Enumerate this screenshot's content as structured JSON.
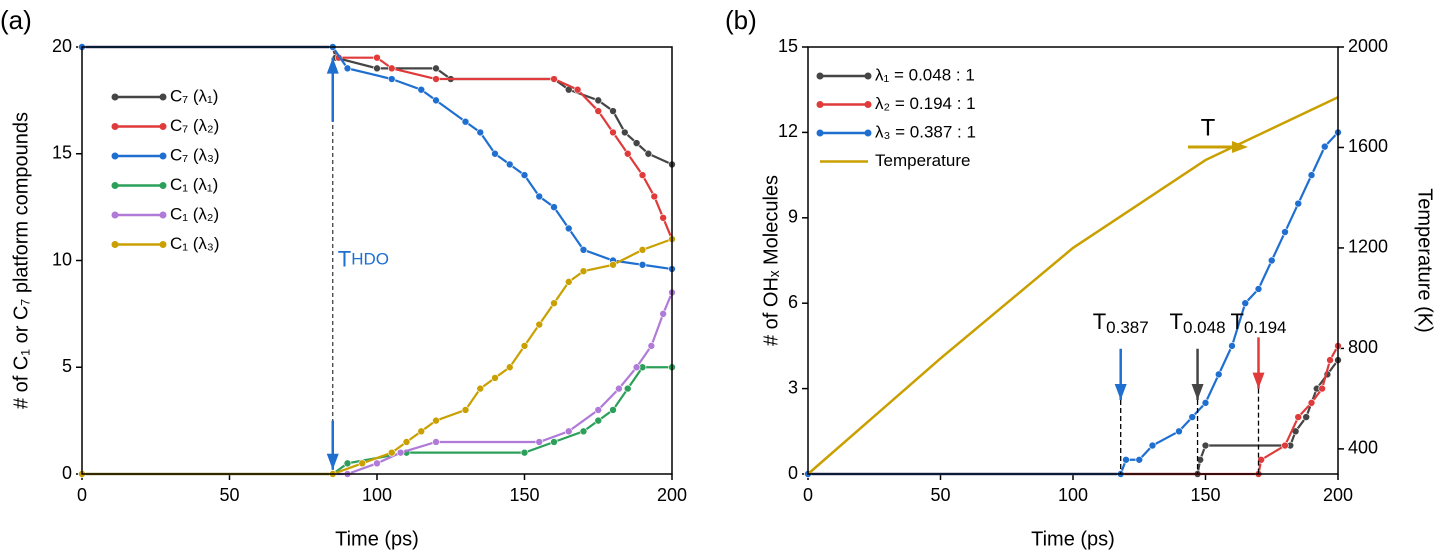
{
  "chart_data": [
    {
      "type": "line",
      "panel_label": "(a)",
      "x_label": "Time (ps)",
      "y_label": "# of C₁ or C₇ platform compounds",
      "xlim": [
        0,
        200
      ],
      "xticks": [
        0,
        50,
        100,
        150,
        200
      ],
      "ylim": [
        0,
        20
      ],
      "yticks": [
        0,
        5,
        10,
        15,
        20
      ],
      "legend": "upper left",
      "markers": true,
      "series": [
        {
          "name": "C₇ (λ₁)",
          "color": "#454545",
          "x": [
            0,
            85,
            86,
            100,
            120,
            125,
            160,
            165,
            175,
            180,
            184,
            188,
            192,
            200
          ],
          "values": [
            20,
            20,
            19.5,
            19,
            19,
            18.5,
            18.5,
            18,
            17.5,
            17,
            16,
            15.5,
            15,
            14.5
          ]
        },
        {
          "name": "C₇ (λ₂)",
          "color": "#e03a3a",
          "x": [
            0,
            85,
            87,
            100,
            105,
            120,
            160,
            168,
            175,
            180,
            185,
            190,
            194,
            197,
            200
          ],
          "values": [
            20,
            20,
            19.5,
            19.5,
            19,
            18.5,
            18.5,
            18,
            17,
            16,
            15,
            14,
            13,
            12,
            11
          ]
        },
        {
          "name": "C₇ (λ₃)",
          "color": "#1f6fd1",
          "x": [
            0,
            85,
            90,
            105,
            115,
            120,
            130,
            135,
            140,
            145,
            150,
            155,
            160,
            165,
            170,
            180,
            190,
            200
          ],
          "values": [
            20,
            20,
            19,
            18.5,
            18,
            17.5,
            16.5,
            16,
            15,
            14.5,
            14,
            13,
            12.5,
            11.5,
            10.5,
            10,
            9.8,
            9.6
          ]
        },
        {
          "name": "C₁ (λ₁)",
          "color": "#2ca05a",
          "x": [
            0,
            85,
            90,
            110,
            150,
            160,
            170,
            175,
            180,
            185,
            190,
            200
          ],
          "values": [
            0,
            0,
            0.5,
            1,
            1,
            1.5,
            2,
            2.5,
            3,
            4,
            5,
            5
          ]
        },
        {
          "name": "C₁ (λ₂)",
          "color": "#b07ad8",
          "x": [
            0,
            90,
            100,
            108,
            120,
            155,
            165,
            175,
            182,
            188,
            193,
            197,
            200
          ],
          "values": [
            0,
            0,
            0.5,
            1,
            1.5,
            1.5,
            2,
            3,
            4,
            5,
            6,
            7.5,
            8.5
          ]
        },
        {
          "name": "C₁ (λ₃)",
          "color": "#c9a000",
          "x": [
            0,
            85,
            95,
            105,
            110,
            115,
            120,
            130,
            135,
            140,
            145,
            150,
            155,
            160,
            165,
            170,
            180,
            190,
            200
          ],
          "values": [
            0,
            0,
            0.5,
            1,
            1.5,
            2,
            2.5,
            3,
            4,
            4.5,
            5,
            6,
            7,
            8,
            9,
            9.5,
            9.8,
            10.5,
            11
          ]
        }
      ],
      "annotations": [
        {
          "text": "T",
          "sub": "HDO",
          "x": 85,
          "color": "#1f6fd1"
        }
      ]
    },
    {
      "type": "line",
      "panel_label": "(b)",
      "x_label": "Time (ps)",
      "y_label": "# of OHₓ Molecules",
      "y2_label": "Temperature (K)",
      "xlim": [
        0,
        200
      ],
      "xticks": [
        0,
        50,
        100,
        150,
        200
      ],
      "ylim": [
        0,
        15
      ],
      "yticks": [
        0,
        3,
        6,
        9,
        12,
        15
      ],
      "y2lim": [
        300,
        2000
      ],
      "y2ticks": [
        400,
        800,
        1200,
        1600,
        2000
      ],
      "legend": "upper left",
      "markers": true,
      "series": [
        {
          "name": "λ₁ = 0.048 : 1",
          "color": "#454545",
          "x": [
            0,
            147,
            148,
            150,
            182,
            184,
            188,
            192,
            196,
            200
          ],
          "values": [
            0,
            0,
            0.5,
            1,
            1,
            1.5,
            2,
            3,
            3.5,
            4
          ]
        },
        {
          "name": "λ₂ = 0.194 : 1",
          "color": "#e03a3a",
          "x": [
            0,
            170,
            171,
            180,
            185,
            190,
            194,
            197,
            200
          ],
          "values": [
            0,
            0,
            0.5,
            1,
            2,
            2.5,
            3,
            4,
            4.5
          ]
        },
        {
          "name": "λ₃ = 0.387 : 1",
          "color": "#1f6fd1",
          "x": [
            0,
            118,
            120,
            125,
            130,
            140,
            145,
            150,
            155,
            160,
            165,
            170,
            175,
            180,
            185,
            190,
            195,
            200
          ],
          "values": [
            0,
            0,
            0.5,
            0.5,
            1,
            1.5,
            2,
            2.5,
            3.5,
            4.5,
            6,
            6.5,
            7.5,
            8.5,
            9.5,
            10.5,
            11.5,
            12
          ]
        },
        {
          "name": "Temperature",
          "color": "#c9a000",
          "axis": "y2",
          "x": [
            0,
            50,
            100,
            150,
            200
          ],
          "values": [
            300,
            760,
            1200,
            1550,
            1800
          ]
        }
      ],
      "annotations": [
        {
          "text": "T",
          "sub": "0.387",
          "x": 118,
          "color": "#1f6fd1"
        },
        {
          "text": "T",
          "sub": "0.048",
          "x": 147,
          "color": "#454545"
        },
        {
          "text": "T",
          "sub": "0.194",
          "x": 170,
          "color": "#e03a3a"
        }
      ],
      "series_arrow": {
        "text": "T",
        "color": "#c9a000"
      }
    }
  ]
}
